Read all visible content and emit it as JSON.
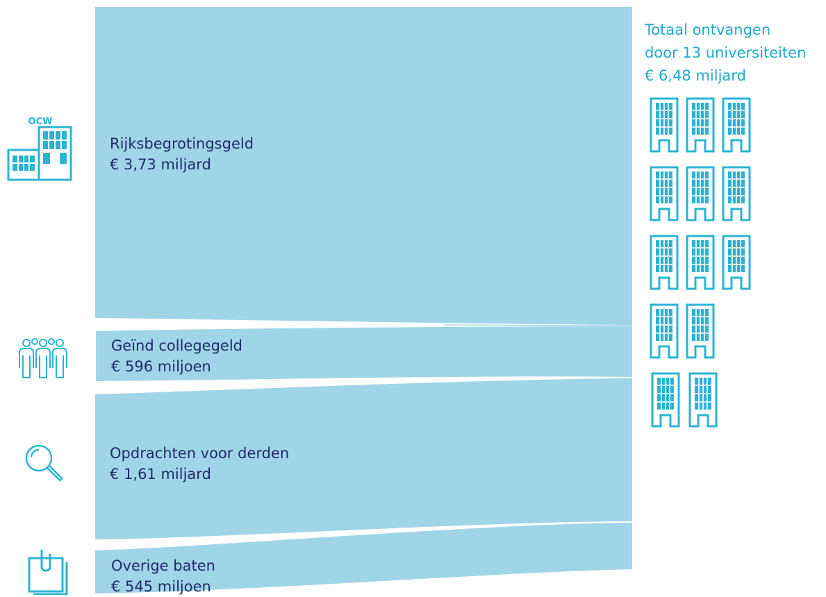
{
  "colors": {
    "flow": "#a0d5e8",
    "flow_seam": "#7ec6dc",
    "icon": "#2ab4d4",
    "label_text": "#1f2a6b",
    "total_text": "#1fa9cf"
  },
  "sources": [
    {
      "label": "Rijksbegrotingsgeld",
      "amount": "€ 3,73 miljard",
      "icon": "ocw-building-icon",
      "icon_text": "OCW",
      "value_million": 3730
    },
    {
      "label": "Geïnd collegegeld",
      "amount": "€ 596 miljoen",
      "icon": "students-icon",
      "value_million": 596
    },
    {
      "label": "Opdrachten voor derden",
      "amount": "€ 1,61 miljard",
      "icon": "magnifier-icon",
      "value_million": 1610
    },
    {
      "label": "Overige baten",
      "amount": "€ 545 miljoen",
      "icon": "clipboard-icon",
      "value_million": 545
    }
  ],
  "total": {
    "line1": "Totaal ontvangen",
    "line2": "door 13 universiteiten",
    "line3": "€ 6,48 miljard",
    "value_million": 6480,
    "university_count": 13,
    "icon": "university-building-icon"
  }
}
